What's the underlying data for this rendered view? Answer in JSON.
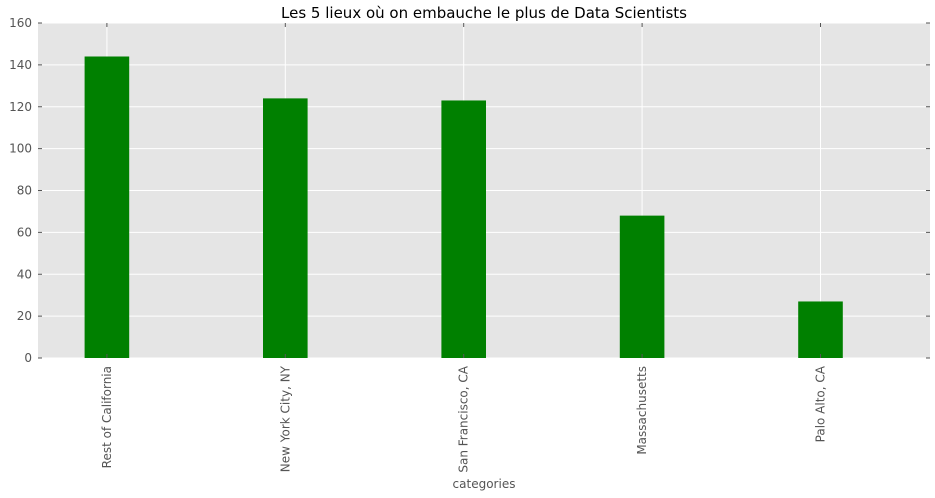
{
  "chart_data": {
    "type": "bar",
    "title": "Les 5 lieux où on embauche le plus de Data Scientists",
    "xlabel": "categories",
    "ylabel": "",
    "categories": [
      "Rest of California",
      "New York City, NY",
      "San Francisco, CA",
      "Massachusetts",
      "Palo Alto, CA"
    ],
    "values": [
      144,
      124,
      123,
      68,
      27
    ],
    "ylim": [
      0,
      160
    ],
    "yticks": [
      0,
      20,
      40,
      60,
      80,
      100,
      120,
      140,
      160
    ],
    "grid": true,
    "bar_color": "#008000",
    "background_color": "#e5e5e5",
    "grid_color": "#ffffff"
  }
}
